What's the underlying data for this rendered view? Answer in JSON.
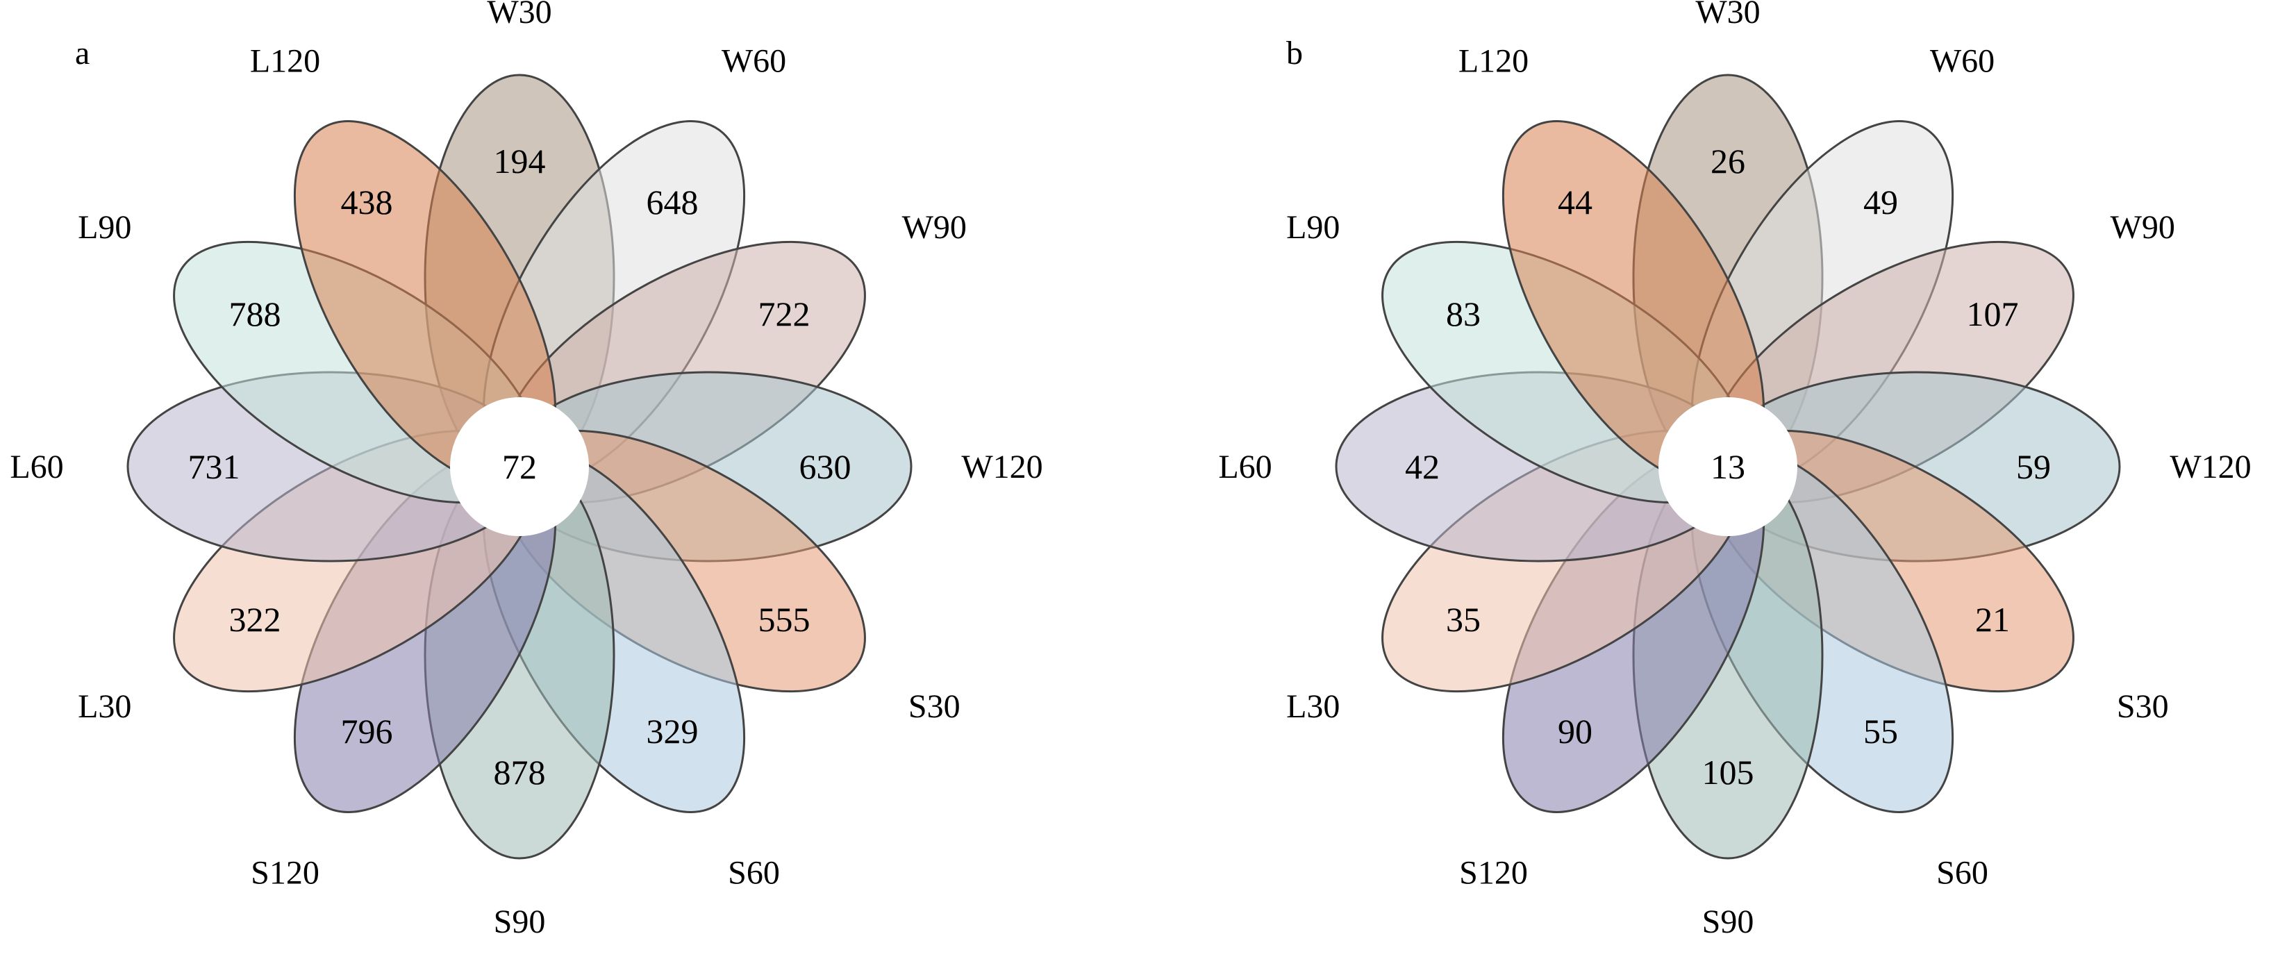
{
  "panels": [
    {
      "letter": "a",
      "center_value": "72",
      "petals": [
        {
          "name": "W30",
          "value": "194",
          "color": "#a89583"
        },
        {
          "name": "W60",
          "value": "648",
          "color": "#e0e0e0"
        },
        {
          "name": "W90",
          "value": "722",
          "color": "#cfb3ad"
        },
        {
          "name": "W120",
          "value": "630",
          "color": "#a9c4cc"
        },
        {
          "name": "S30",
          "value": "555",
          "color": "#e39a74"
        },
        {
          "name": "S60",
          "value": "329",
          "color": "#accbe0"
        },
        {
          "name": "S90",
          "value": "878",
          "color": "#a0bcb4"
        },
        {
          "name": "S120",
          "value": "796",
          "color": "#887fae"
        },
        {
          "name": "L30",
          "value": "322",
          "color": "#efc3ad"
        },
        {
          "name": "L60",
          "value": "731",
          "color": "#bab7cc"
        },
        {
          "name": "L90",
          "value": "788",
          "color": "#c5e2db"
        },
        {
          "name": "L120",
          "value": "438",
          "color": "#d78151"
        }
      ]
    },
    {
      "letter": "b",
      "center_value": "13",
      "petals": [
        {
          "name": "W30",
          "value": "26",
          "color": "#a89583"
        },
        {
          "name": "W60",
          "value": "49",
          "color": "#e0e0e0"
        },
        {
          "name": "W90",
          "value": "107",
          "color": "#cfb3ad"
        },
        {
          "name": "W120",
          "value": "59",
          "color": "#a9c4cc"
        },
        {
          "name": "S30",
          "value": "21",
          "color": "#e39a74"
        },
        {
          "name": "S60",
          "value": "55",
          "color": "#accbe0"
        },
        {
          "name": "S90",
          "value": "105",
          "color": "#a0bcb4"
        },
        {
          "name": "S120",
          "value": "90",
          "color": "#887fae"
        },
        {
          "name": "L30",
          "value": "35",
          "color": "#efc3ad"
        },
        {
          "name": "L60",
          "value": "42",
          "color": "#bab7cc"
        },
        {
          "name": "L90",
          "value": "83",
          "color": "#c5e2db"
        },
        {
          "name": "L120",
          "value": "44",
          "color": "#d78151"
        }
      ]
    }
  ]
}
